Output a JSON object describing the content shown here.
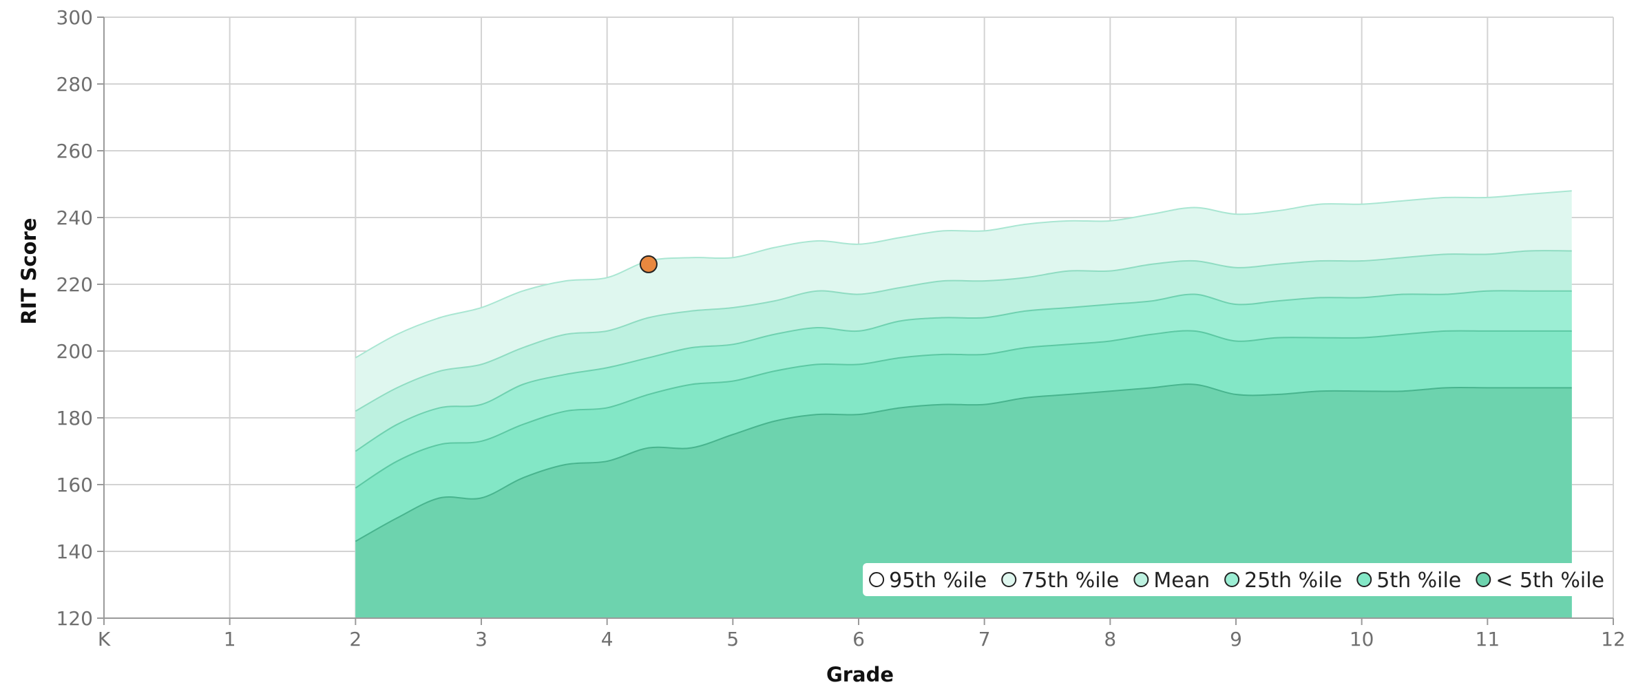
{
  "chart_data": {
    "type": "area",
    "xlabel": "Grade",
    "ylabel": "RIT Score",
    "x_ticks": [
      {
        "value": 0,
        "label": "K"
      },
      {
        "value": 1,
        "label": "1"
      },
      {
        "value": 2,
        "label": "2"
      },
      {
        "value": 3,
        "label": "3"
      },
      {
        "value": 4,
        "label": "4"
      },
      {
        "value": 5,
        "label": "5"
      },
      {
        "value": 6,
        "label": "6"
      },
      {
        "value": 7,
        "label": "7"
      },
      {
        "value": 8,
        "label": "8"
      },
      {
        "value": 9,
        "label": "9"
      },
      {
        "value": 10,
        "label": "10"
      },
      {
        "value": 11,
        "label": "11"
      },
      {
        "value": 12,
        "label": "12"
      }
    ],
    "y_ticks": [
      120,
      140,
      160,
      180,
      200,
      220,
      240,
      260,
      280,
      300
    ],
    "xlim": [
      0,
      12
    ],
    "ylim": [
      120,
      300
    ],
    "grid": true,
    "legend_position": "bottom-right",
    "x": [
      2.0,
      2.33,
      2.67,
      3.0,
      3.33,
      3.67,
      4.0,
      4.33,
      4.67,
      5.0,
      5.33,
      5.67,
      6.0,
      6.33,
      6.67,
      7.0,
      7.33,
      7.67,
      8.0,
      8.33,
      8.67,
      9.0,
      9.33,
      9.67,
      10.0,
      10.33,
      10.67,
      11.0,
      11.33,
      11.67
    ],
    "series": [
      {
        "name": "95th %ile",
        "color": "#dff7ef",
        "stroke": "#a9e6d2",
        "values": [
          198,
          205,
          210,
          213,
          218,
          221,
          222,
          227,
          228,
          228,
          231,
          233,
          232,
          234,
          236,
          236,
          238,
          239,
          239,
          241,
          243,
          241,
          242,
          244,
          244,
          245,
          246,
          246,
          247,
          248
        ]
      },
      {
        "name": "75th %ile",
        "color": "#bdf1e0",
        "stroke": "#8fdcc2",
        "values": [
          182,
          189,
          194,
          196,
          201,
          205,
          206,
          210,
          212,
          213,
          215,
          218,
          217,
          219,
          221,
          221,
          222,
          224,
          224,
          226,
          227,
          225,
          226,
          227,
          227,
          228,
          229,
          229,
          230,
          230
        ]
      },
      {
        "name": "Mean",
        "color": "#9ceed4",
        "stroke": "#6fd1b0",
        "values": [
          170,
          178,
          183,
          184,
          190,
          193,
          195,
          198,
          201,
          202,
          205,
          207,
          206,
          209,
          210,
          210,
          212,
          213,
          214,
          215,
          217,
          214,
          215,
          216,
          216,
          217,
          217,
          218,
          218,
          218
        ]
      },
      {
        "name": "25th %ile",
        "color": "#83e7c6",
        "stroke": "#5cc8a3",
        "values": [
          159,
          167,
          172,
          173,
          178,
          182,
          183,
          187,
          190,
          191,
          194,
          196,
          196,
          198,
          199,
          199,
          201,
          202,
          203,
          205,
          206,
          203,
          204,
          204,
          204,
          205,
          206,
          206,
          206,
          206
        ]
      },
      {
        "name": "5th %ile",
        "color": "#6dd3ae",
        "stroke": "#48b48e",
        "values": [
          143,
          150,
          156,
          156,
          162,
          166,
          167,
          171,
          171,
          175,
          179,
          181,
          181,
          183,
          184,
          184,
          186,
          187,
          188,
          189,
          190,
          187,
          187,
          188,
          188,
          188,
          189,
          189,
          189,
          189
        ]
      }
    ],
    "legend": [
      {
        "label": "95th %ile",
        "swatch": "#ffffff"
      },
      {
        "label": "75th %ile",
        "swatch": "#dff7ef"
      },
      {
        "label": "Mean",
        "swatch": "#bdf1e0"
      },
      {
        "label": "25th %ile",
        "swatch": "#9ceed4"
      },
      {
        "label": "5th %ile",
        "swatch": "#83e7c6"
      },
      {
        "label": "< 5th %ile",
        "swatch": "#6dd3ae"
      }
    ],
    "student_point": {
      "x": 4.33,
      "y": 226,
      "color": "#e8883f"
    }
  }
}
